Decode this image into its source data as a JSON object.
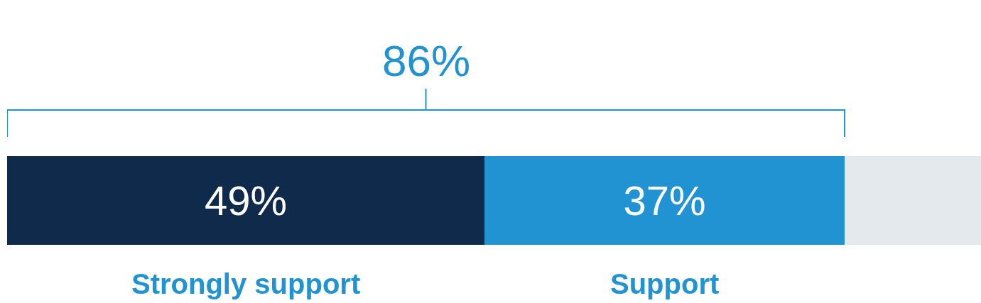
{
  "chart_data": {
    "type": "bar",
    "orientation": "horizontal",
    "stacked": true,
    "categories": [
      null
    ],
    "series": [
      {
        "name": "Strongly support",
        "color": "#0f2a4a",
        "values": [
          49
        ],
        "value_labels": [
          "49%"
        ]
      },
      {
        "name": "Support",
        "color": "#2193d2",
        "values": [
          37
        ],
        "value_labels": [
          "37%"
        ]
      },
      {
        "color": "#e4e9ee",
        "values": [
          14
        ],
        "value_labels": [
          null
        ]
      }
    ],
    "xlim": [
      0,
      100
    ],
    "tick_labels": false,
    "legend": false,
    "annotations": [
      "86%"
    ]
  }
}
